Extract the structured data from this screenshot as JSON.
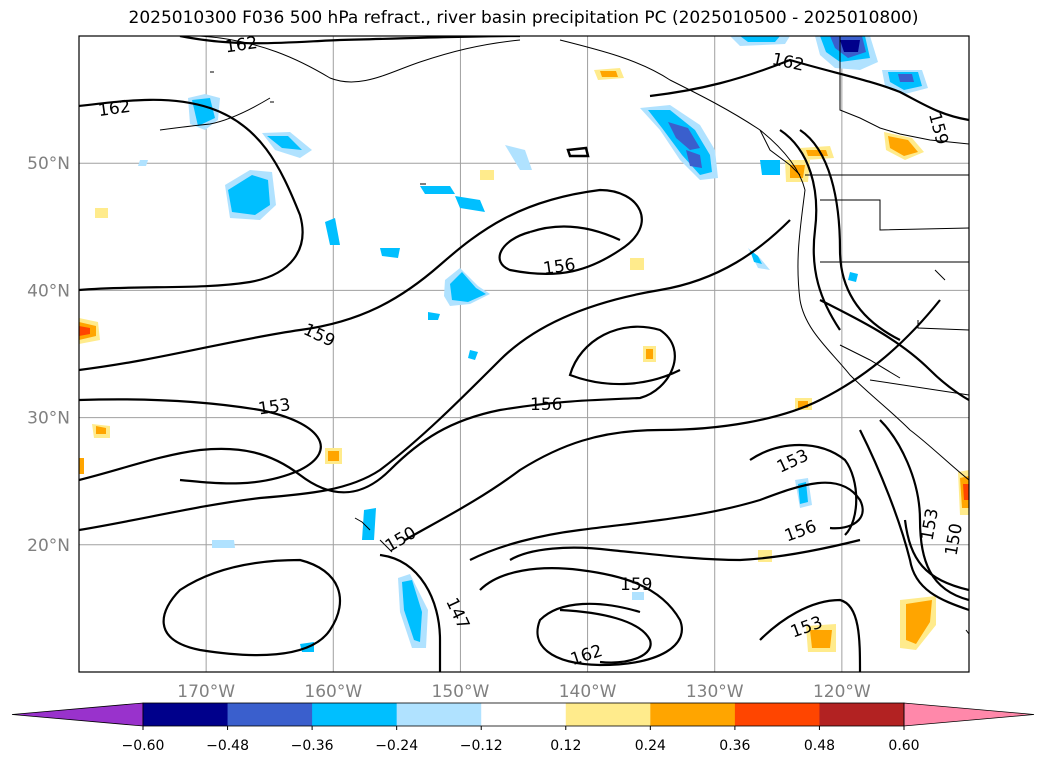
{
  "title": "2025010300 F036 500 hPa refract., river basin precipitation PC (2025010500 - 2025010800)",
  "latitude_labels": [
    {
      "text": "50°N",
      "lat": 50
    },
    {
      "text": "40°N",
      "lat": 40
    },
    {
      "text": "30°N",
      "lat": 30
    },
    {
      "text": "20°N",
      "lat": 20
    }
  ],
  "longitude_labels": [
    {
      "text": "170°W",
      "lon": -170
    },
    {
      "text": "160°W",
      "lon": -160
    },
    {
      "text": "150°W",
      "lon": -150
    },
    {
      "text": "140°W",
      "lon": -140
    },
    {
      "text": "130°W",
      "lon": -130
    },
    {
      "text": "120°W",
      "lon": -120
    }
  ],
  "contour_labels": [
    {
      "text": "162"
    },
    {
      "text": "162"
    },
    {
      "text": "162"
    },
    {
      "text": "159"
    },
    {
      "text": "156"
    },
    {
      "text": "159"
    },
    {
      "text": "153"
    },
    {
      "text": "156"
    },
    {
      "text": "153"
    },
    {
      "text": "156"
    },
    {
      "text": "150"
    },
    {
      "text": "153"
    },
    {
      "text": "150"
    },
    {
      "text": "159"
    },
    {
      "text": "147"
    },
    {
      "text": "153"
    },
    {
      "text": "162"
    }
  ],
  "colorbar": {
    "colors": [
      "#9932cc",
      "#00008b",
      "#3a5fcd",
      "#00bfff",
      "#b0e2ff",
      "#ffffff",
      "#ffeb8c",
      "#ffa500",
      "#ff4500",
      "#b22222",
      "#ff88aa"
    ],
    "ticks": [
      "−0.60",
      "−0.48",
      "−0.36",
      "−0.24",
      "−0.12",
      "0.12",
      "0.24",
      "0.36",
      "0.48",
      "0.60"
    ]
  }
}
